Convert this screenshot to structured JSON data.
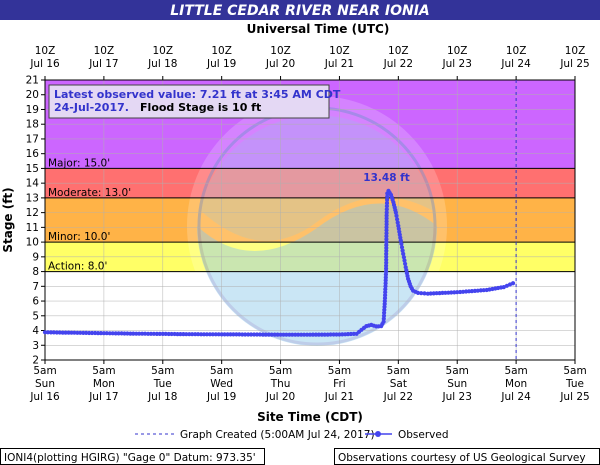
{
  "header": {
    "title": "LITTLE CEDAR RIVER NEAR IONIA",
    "top_axis_title": "Universal Time (UTC)"
  },
  "info_box": {
    "line1": "Latest observed value: 7.21 ft at 3:45 AM CDT",
    "line2_date": "24-Jul-2017.",
    "line2_flood": "Flood Stage is 10 ft"
  },
  "legend": {
    "created": "Graph Created (5:00AM Jul 24, 2017)",
    "observed": "Observed"
  },
  "footer": {
    "left": "IONI4(plotting HGIRG) \"Gage 0\" Datum: 973.35'",
    "right": "Observations courtesy of US Geological Survey"
  },
  "colors": {
    "title_bg": "#333399",
    "major": "#cc66ff",
    "moderate": "#ff7070",
    "minor": "#ffb347",
    "action": "#ffff66",
    "series": "#4444ee",
    "peak_label": "#3333cc"
  },
  "chart_data": {
    "type": "line",
    "xlabel": "Site Time (CDT)",
    "ylabel": "Stage (ft)",
    "x_unit": "days",
    "xlim": [
      "2017-07-16 05:00",
      "2017-07-25 05:00"
    ],
    "ylim": [
      2,
      21
    ],
    "yticks": [
      2,
      3,
      4,
      5,
      6,
      7,
      8,
      9,
      10,
      11,
      12,
      13,
      14,
      15,
      16,
      17,
      18,
      19,
      20,
      21
    ],
    "bottom_ticks": [
      {
        "time": "5am",
        "day": "Sun",
        "date": "Jul 16"
      },
      {
        "time": "5am",
        "day": "Mon",
        "date": "Jul 17"
      },
      {
        "time": "5am",
        "day": "Tue",
        "date": "Jul 18"
      },
      {
        "time": "5am",
        "day": "Wed",
        "date": "Jul 19"
      },
      {
        "time": "5am",
        "day": "Thu",
        "date": "Jul 20"
      },
      {
        "time": "5am",
        "day": "Fri",
        "date": "Jul 21"
      },
      {
        "time": "5am",
        "day": "Sat",
        "date": "Jul 22"
      },
      {
        "time": "5am",
        "day": "Sun",
        "date": "Jul 23"
      },
      {
        "time": "5am",
        "day": "Mon",
        "date": "Jul 24"
      },
      {
        "time": "5am",
        "day": "Tue",
        "date": "Jul 25"
      }
    ],
    "top_ticks": [
      {
        "time": "10Z",
        "date": "Jul 16"
      },
      {
        "time": "10Z",
        "date": "Jul 17"
      },
      {
        "time": "10Z",
        "date": "Jul 18"
      },
      {
        "time": "10Z",
        "date": "Jul 19"
      },
      {
        "time": "10Z",
        "date": "Jul 20"
      },
      {
        "time": "10Z",
        "date": "Jul 21"
      },
      {
        "time": "10Z",
        "date": "Jul 22"
      },
      {
        "time": "10Z",
        "date": "Jul 23"
      },
      {
        "time": "10Z",
        "date": "Jul 24"
      },
      {
        "time": "10Z",
        "date": "Jul 25"
      }
    ],
    "flood_categories": [
      {
        "name": "Major",
        "label": "Major: 15.0'",
        "from": 15,
        "to": 21,
        "color": "#cc66ff"
      },
      {
        "name": "Moderate",
        "label": "Moderate: 13.0'",
        "from": 13,
        "to": 15,
        "color": "#ff7070"
      },
      {
        "name": "Minor",
        "label": "Minor: 10.0'",
        "from": 10,
        "to": 13,
        "color": "#ffb347"
      },
      {
        "name": "Action",
        "label": "Action: 8.0'",
        "from": 8,
        "to": 10,
        "color": "#ffff66"
      }
    ],
    "graph_created_time": "2017-07-24 05:00",
    "peak": {
      "label": "13.48 ft",
      "time": "2017-07-22 01:00",
      "value": 13.48
    },
    "series": [
      {
        "name": "Observed",
        "points": [
          [
            "2017-07-16 05:00",
            3.88
          ],
          [
            "2017-07-16 17:00",
            3.85
          ],
          [
            "2017-07-17 05:00",
            3.82
          ],
          [
            "2017-07-17 17:00",
            3.79
          ],
          [
            "2017-07-18 05:00",
            3.77
          ],
          [
            "2017-07-18 17:00",
            3.75
          ],
          [
            "2017-07-19 05:00",
            3.74
          ],
          [
            "2017-07-19 17:00",
            3.73
          ],
          [
            "2017-07-20 05:00",
            3.72
          ],
          [
            "2017-07-20 17:00",
            3.72
          ],
          [
            "2017-07-21 05:00",
            3.73
          ],
          [
            "2017-07-21 12:00",
            3.78
          ],
          [
            "2017-07-21 14:00",
            4.05
          ],
          [
            "2017-07-21 16:00",
            4.3
          ],
          [
            "2017-07-21 18:00",
            4.38
          ],
          [
            "2017-07-21 20:00",
            4.28
          ],
          [
            "2017-07-21 22:00",
            4.3
          ],
          [
            "2017-07-21 23:00",
            4.6
          ],
          [
            "2017-07-21 23:30",
            6.0
          ],
          [
            "2017-07-22 00:00",
            8.0
          ],
          [
            "2017-07-22 00:15",
            12.0
          ],
          [
            "2017-07-22 00:30",
            13.3
          ],
          [
            "2017-07-22 01:00",
            13.48
          ],
          [
            "2017-07-22 02:00",
            13.2
          ],
          [
            "2017-07-22 03:00",
            12.7
          ],
          [
            "2017-07-22 04:00",
            12.0
          ],
          [
            "2017-07-22 05:00",
            11.1
          ],
          [
            "2017-07-22 06:00",
            10.1
          ],
          [
            "2017-07-22 07:00",
            9.2
          ],
          [
            "2017-07-22 08:00",
            8.3
          ],
          [
            "2017-07-22 09:00",
            7.5
          ],
          [
            "2017-07-22 10:00",
            7.0
          ],
          [
            "2017-07-22 11:00",
            6.7
          ],
          [
            "2017-07-22 13:00",
            6.55
          ],
          [
            "2017-07-22 17:00",
            6.5
          ],
          [
            "2017-07-23 05:00",
            6.6
          ],
          [
            "2017-07-23 17:00",
            6.75
          ],
          [
            "2017-07-24 00:00",
            6.95
          ],
          [
            "2017-07-24 03:45",
            7.21
          ]
        ]
      }
    ]
  }
}
